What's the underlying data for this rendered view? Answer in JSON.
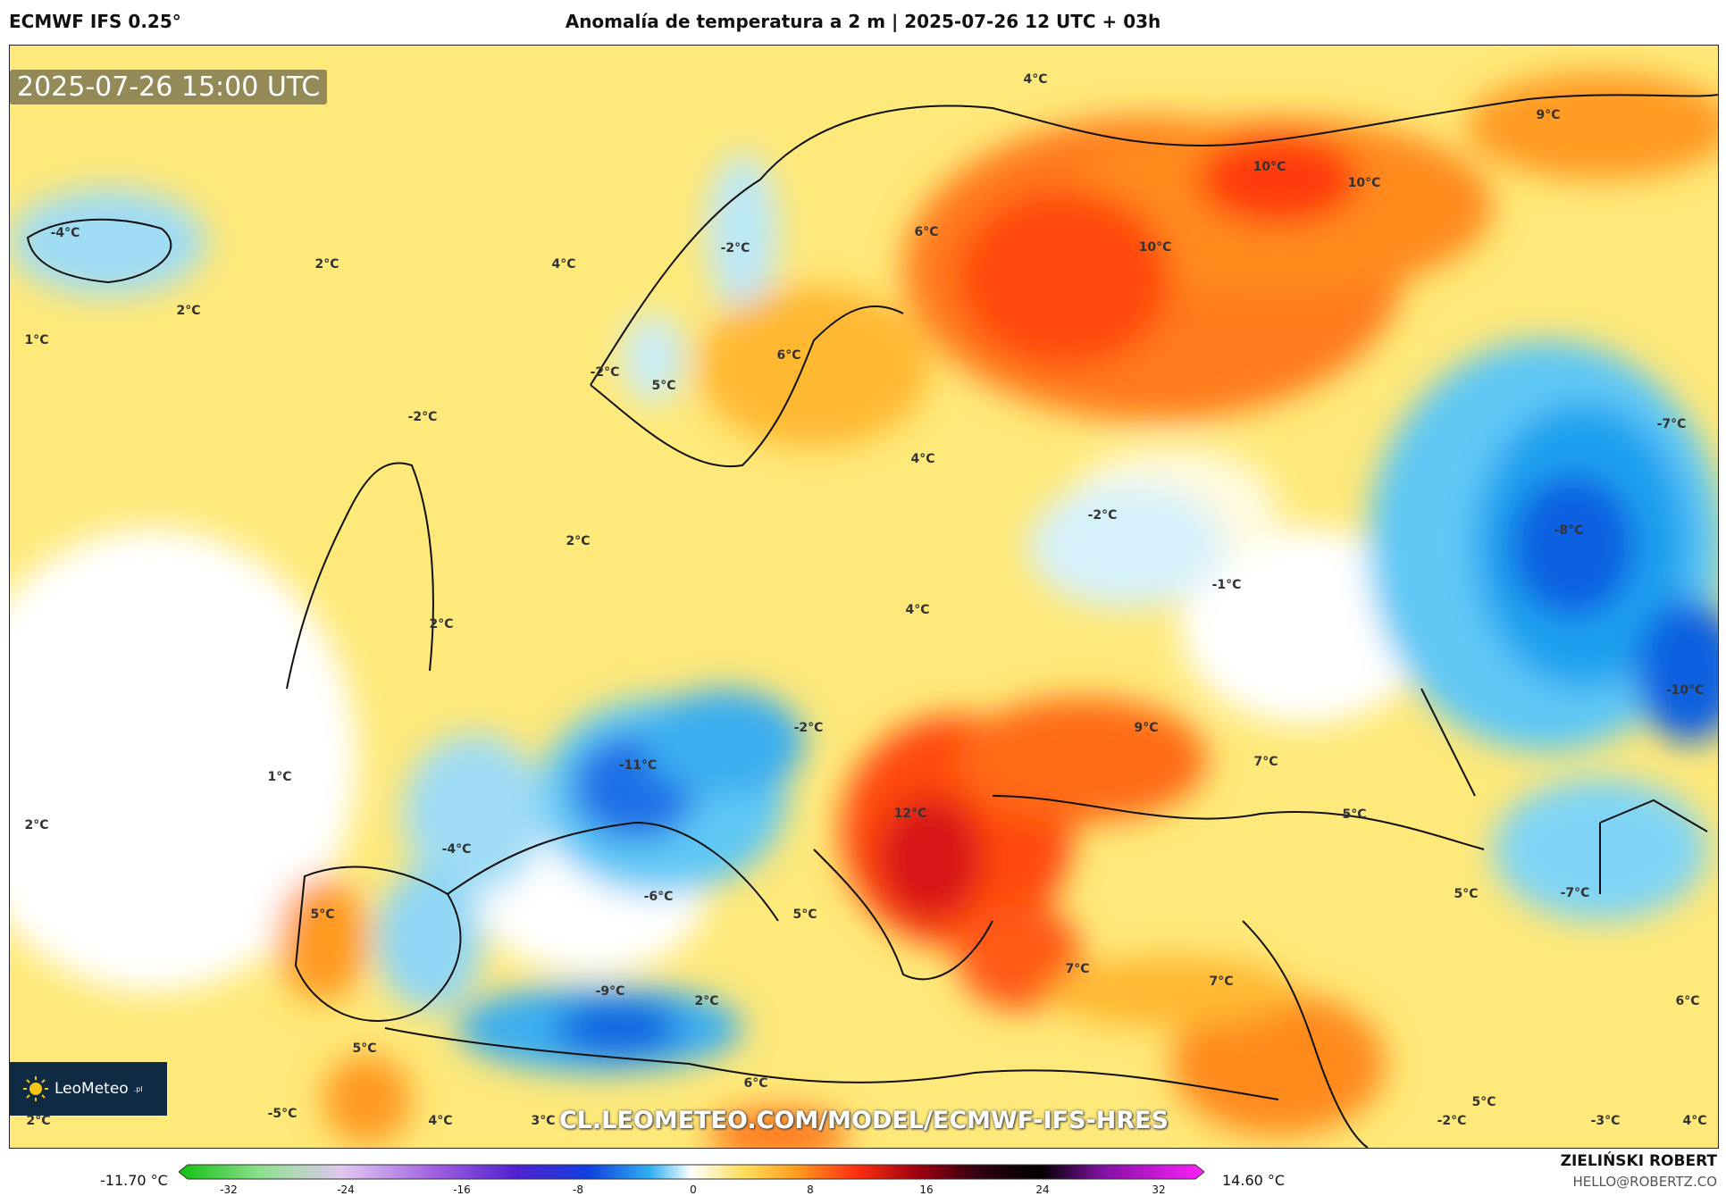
{
  "header": {
    "model": "ECMWF IFS 0.25°",
    "title": "Anomalía de temperatura a 2 m | 2025-07-26 12 UTC + 03h"
  },
  "map": {
    "timestamp": "2025-07-26 15:00 UTC",
    "watermark": "CL.LEOMETEO.COM/MODEL/ECMWF-IFS-HRES",
    "logo_text": "LeoMeteo",
    "logo_suffix": ".pl",
    "labels": [
      {
        "text": "-4°C"
      },
      {
        "text": "2°C"
      },
      {
        "text": "2°C"
      },
      {
        "text": "1°C"
      },
      {
        "text": "4°C"
      },
      {
        "text": "-2°C"
      },
      {
        "text": "4°C"
      },
      {
        "text": "6°C"
      },
      {
        "text": "10°C"
      },
      {
        "text": "10°C"
      },
      {
        "text": "10°C"
      },
      {
        "text": "9°C"
      },
      {
        "text": "-2°C"
      },
      {
        "text": "5°C"
      },
      {
        "text": "6°C"
      },
      {
        "text": "-2°C"
      },
      {
        "text": "4°C"
      },
      {
        "text": "2°C"
      },
      {
        "text": "-2°C"
      },
      {
        "text": "-1°C"
      },
      {
        "text": "-7°C"
      },
      {
        "text": "-8°C"
      },
      {
        "text": "4°C"
      },
      {
        "text": "2°C"
      },
      {
        "text": "-10°C"
      },
      {
        "text": "-2°C"
      },
      {
        "text": "9°C"
      },
      {
        "text": "-11°C"
      },
      {
        "text": "1°C"
      },
      {
        "text": "7°C"
      },
      {
        "text": "2°C"
      },
      {
        "text": "12°C"
      },
      {
        "text": "5°C"
      },
      {
        "text": "-4°C"
      },
      {
        "text": "-7°C"
      },
      {
        "text": "5°C"
      },
      {
        "text": "-6°C"
      },
      {
        "text": "5°C"
      },
      {
        "text": "5°C"
      },
      {
        "text": "7°C"
      },
      {
        "text": "7°C"
      },
      {
        "text": "-9°C"
      },
      {
        "text": "2°C"
      },
      {
        "text": "6°C"
      },
      {
        "text": "5°C"
      },
      {
        "text": "6°C"
      },
      {
        "text": "-5°C"
      },
      {
        "text": "2°C"
      },
      {
        "text": "4°C"
      },
      {
        "text": "3°C"
      },
      {
        "text": "5°C"
      },
      {
        "text": "-2°C"
      },
      {
        "text": "-3°C"
      },
      {
        "text": "4°C"
      }
    ]
  },
  "colorbar": {
    "min_value": "-11.70 °C",
    "max_value": "14.60 °C",
    "ticks": [
      "-32",
      "-24",
      "-16",
      "-8",
      "0",
      "8",
      "16",
      "24",
      "32"
    ]
  },
  "credits": {
    "author": "ZIELIŃSKI ROBERT",
    "email": "HELLO@ROBERTZ.CO"
  }
}
